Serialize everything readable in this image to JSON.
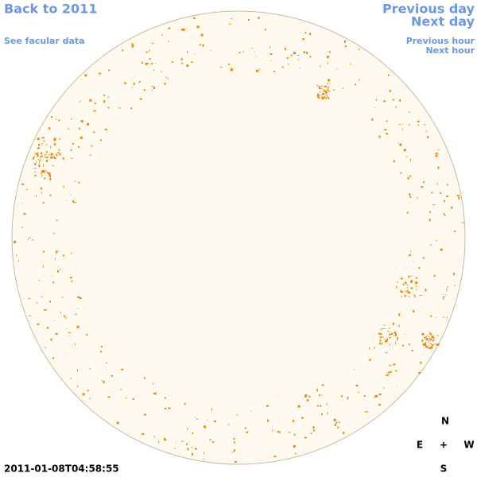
{
  "navigation": {
    "back_to_year": "Back to 2011",
    "see_facular_data": "See facular data",
    "previous_day": "Previous day",
    "next_day": "Next day",
    "previous_hour": "Previous hour",
    "next_hour": "Next hour"
  },
  "timestamp": "2011-01-08T04:58:55",
  "compass": {
    "north": "N",
    "east": "E",
    "center": "+",
    "west": "W",
    "south": "S"
  }
}
